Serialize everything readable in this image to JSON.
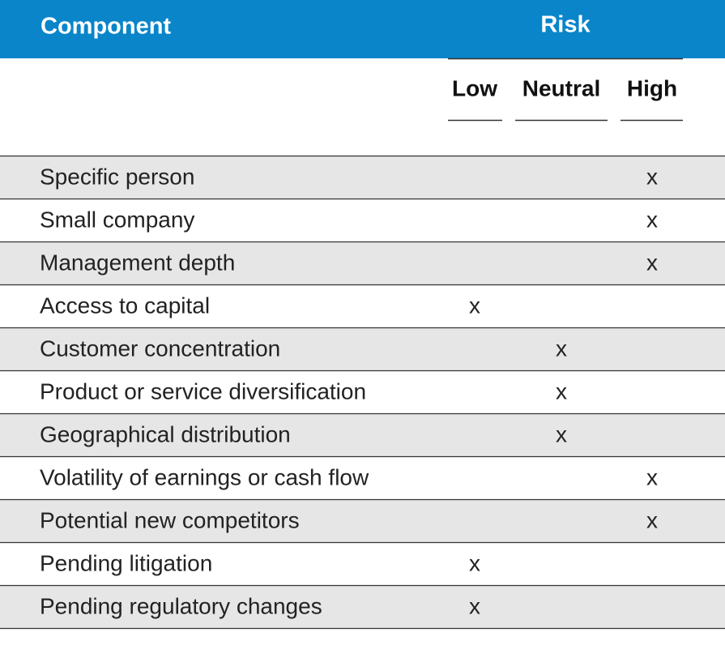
{
  "header": {
    "component": "Component",
    "risk": "Risk"
  },
  "columns": [
    "Low",
    "Neutral",
    "High"
  ],
  "table": {
    "rows": [
      [
        "Specific person",
        null,
        null,
        "x"
      ],
      [
        "Small company",
        null,
        null,
        "x"
      ],
      [
        "Management depth",
        null,
        null,
        "x"
      ],
      [
        "Access to capital",
        "x",
        null,
        null
      ],
      [
        "Customer concentration",
        null,
        "x",
        null
      ],
      [
        "Product or service diversification",
        null,
        "x",
        null
      ],
      [
        "Geographical distribution",
        null,
        "x",
        null
      ],
      [
        "Volatility of earnings or cash flow",
        null,
        null,
        "x"
      ],
      [
        "Potential new competitors",
        null,
        null,
        "x"
      ],
      [
        "Pending litigation",
        "x",
        null,
        null
      ],
      [
        "Pending regulatory changes",
        "x",
        null,
        null
      ]
    ]
  }
}
